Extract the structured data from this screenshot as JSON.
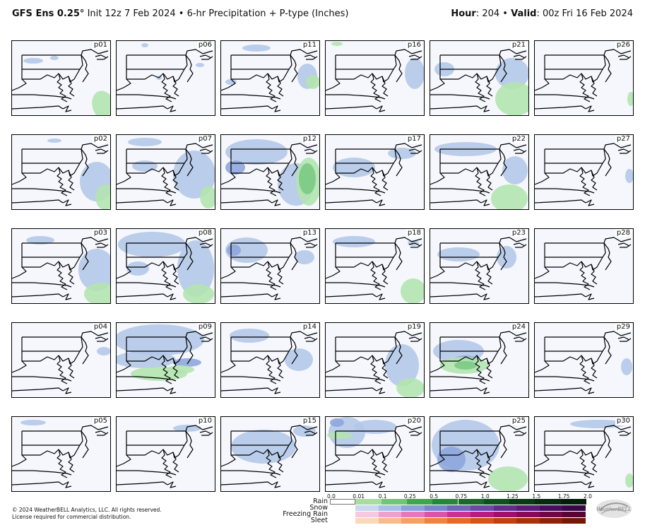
{
  "header": {
    "model": "GFS Ens 0.25°",
    "init": "Init 12z 7 Feb 2024",
    "bullet": "•",
    "product": "6-hr Precipitation + P-type (Inches)",
    "hour_label": "Hour",
    "hour_value": ": 204",
    "valid_label": "Valid",
    "valid_value": ": 00z Fri 16 Feb 2024"
  },
  "panels": [
    "p01",
    "p06",
    "p11",
    "p16",
    "p21",
    "p26",
    "p02",
    "p07",
    "p12",
    "p17",
    "p22",
    "p27",
    "p03",
    "p08",
    "p13",
    "p18",
    "p23",
    "p28",
    "p04",
    "p09",
    "p14",
    "p19",
    "p24",
    "p29",
    "p05",
    "p10",
    "p15",
    "p20",
    "p25",
    "p30"
  ],
  "legend": {
    "ticks": [
      "0.0",
      "0.01",
      "0.1",
      "0.25",
      "0.5",
      "0.75",
      "1.0",
      "1.25",
      "1.5",
      "1.75",
      "2.0"
    ],
    "types": [
      "Rain",
      "Snow",
      "Freezing Rain",
      "Sleet"
    ],
    "colors": {
      "rain": [
        "#ffffff",
        "#a8dca0",
        "#6cc878",
        "#3aa84f",
        "#1e8a3a",
        "#146b2a",
        "#0c5120",
        "#083a16",
        "#052a10",
        "#031d0a"
      ],
      "snow": [
        "#c8d8ee",
        "#a8c0e6",
        "#8aa2d8",
        "#7a86cc",
        "#7066b8",
        "#6a4aa6",
        "#622c8e",
        "#5a1a78",
        "#4a0c60",
        "#3a0648"
      ],
      "freezing_rain": [
        "#f8c8e0",
        "#f0a0cc",
        "#e878b8",
        "#dc54a4",
        "#cc3090",
        "#b81c7c",
        "#a01068",
        "#880a56",
        "#700646",
        "#580436"
      ],
      "sleet": [
        "#fcd8b8",
        "#f8bc8c",
        "#f4a066",
        "#ee8440",
        "#e66a26",
        "#d65418",
        "#c24010",
        "#a8300a",
        "#8e2206",
        "#741804"
      ]
    }
  },
  "footer": {
    "copyright": "© 2024 WeatherBELL Analytics, LLC. All rights reserved.",
    "license": "License required for commercial distribution."
  },
  "logo_text": "WeatherBELL",
  "precip_colors": {
    "snow_light": "#b4c8e8",
    "snow_mod": "#8ea6dc",
    "snow_heavy": "#7a80c8",
    "rain_light": "#b4e4b0",
    "rain_mod": "#7cca84",
    "rain_heavy": "#52b462"
  }
}
